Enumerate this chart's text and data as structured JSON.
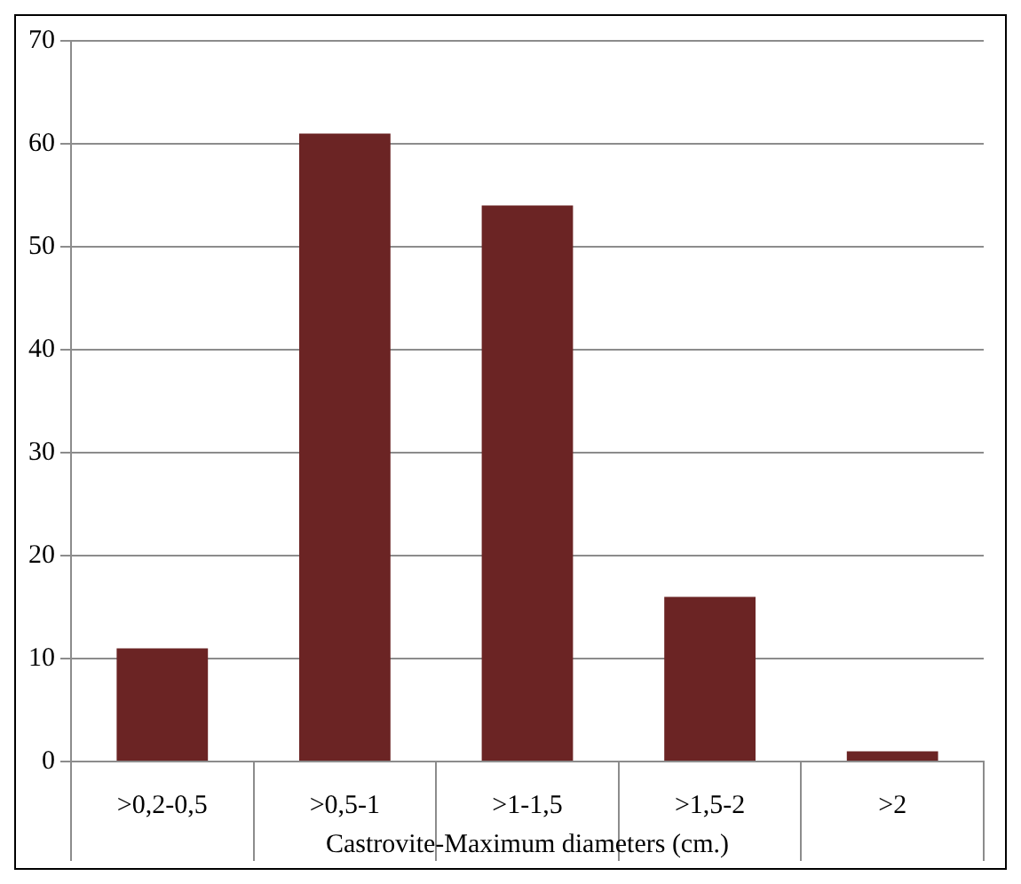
{
  "chart_data": {
    "type": "bar",
    "xlabel": "Castrovite-Maximum diameters (cm.)",
    "categories": [
      ">0,2-0,5",
      ">0,5-1",
      ">1-1,5",
      ">1,5-2",
      ">2"
    ],
    "values": [
      11,
      61,
      54,
      16,
      1
    ],
    "color": "#6b2424",
    "ylim": [
      0,
      70
    ],
    "yticks": [
      0,
      10,
      20,
      30,
      40,
      50,
      60,
      70
    ],
    "grid": "y",
    "legend": false
  }
}
